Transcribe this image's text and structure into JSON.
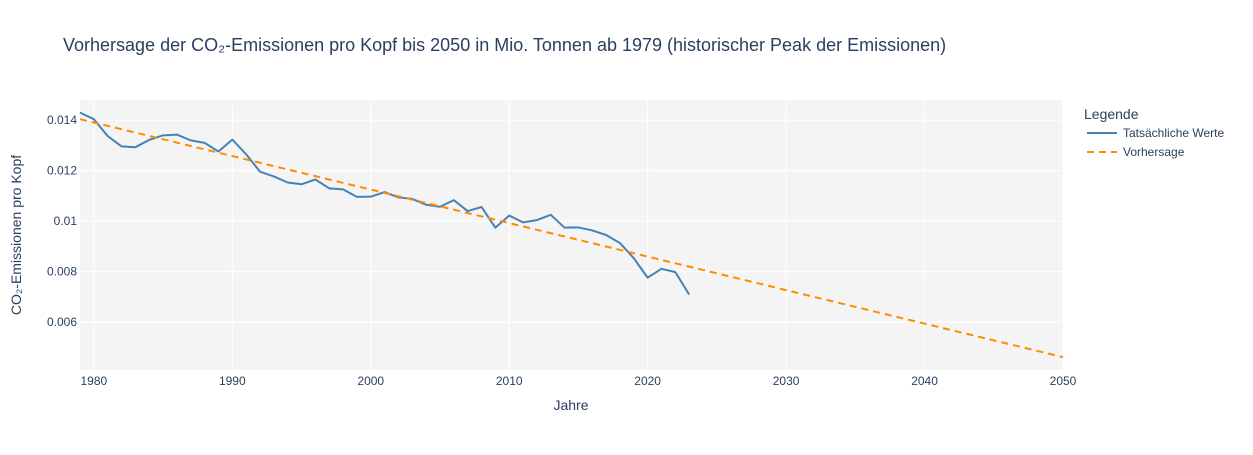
{
  "chart_data": {
    "type": "line",
    "title": "Vorhersage der CO₂-Emissionen pro Kopf bis 2050 in Mio. Tonnen ab 1979 (historischer Peak der Emissionen)",
    "xlabel": "Jahre",
    "ylabel": "CO₂-Emissionen pro Kopf",
    "xlim": [
      1979,
      2050
    ],
    "ylim": [
      0.0041,
      0.0148
    ],
    "x_ticks": [
      1980,
      1990,
      2000,
      2010,
      2020,
      2030,
      2040,
      2050
    ],
    "y_ticks": [
      0.006,
      0.008,
      0.01,
      0.012,
      0.014
    ],
    "y_tick_labels": [
      "0.006",
      "0.008",
      "0.01",
      "0.012",
      "0.014"
    ],
    "grid": true,
    "legend": {
      "title": "Legende",
      "position": "right"
    },
    "colors": {
      "actual": "#4682b4",
      "forecast": "#ff8c00",
      "plot_bg": "#f4f4f4",
      "grid": "#ffffff"
    },
    "series": [
      {
        "name": "Tatsächliche Werte",
        "style": "solid",
        "x": [
          1979,
          1980,
          1981,
          1982,
          1983,
          1984,
          1985,
          1986,
          1987,
          1988,
          1989,
          1990,
          1991,
          1992,
          1993,
          1994,
          1995,
          1996,
          1997,
          1998,
          1999,
          2000,
          2001,
          2002,
          2003,
          2004,
          2005,
          2006,
          2007,
          2008,
          2009,
          2010,
          2011,
          2012,
          2013,
          2014,
          2015,
          2016,
          2017,
          2018,
          2019,
          2020,
          2021,
          2022,
          2023
        ],
        "y": [
          0.0143,
          0.01404,
          0.01337,
          0.01296,
          0.01293,
          0.01322,
          0.0134,
          0.01343,
          0.0132,
          0.0131,
          0.01276,
          0.01323,
          0.01265,
          0.01196,
          0.01177,
          0.01153,
          0.01146,
          0.01165,
          0.0113,
          0.01126,
          0.01096,
          0.01097,
          0.01115,
          0.01094,
          0.01088,
          0.01065,
          0.01057,
          0.01083,
          0.0104,
          0.01056,
          0.00974,
          0.01022,
          0.00995,
          0.01004,
          0.01025,
          0.00974,
          0.00975,
          0.00963,
          0.00945,
          0.00913,
          0.00853,
          0.00776,
          0.00811,
          0.00798,
          0.00709
        ]
      },
      {
        "name": "Vorhersage",
        "style": "dashed",
        "x": [
          1979,
          2050
        ],
        "y": [
          0.01404,
          0.00461
        ]
      }
    ]
  }
}
